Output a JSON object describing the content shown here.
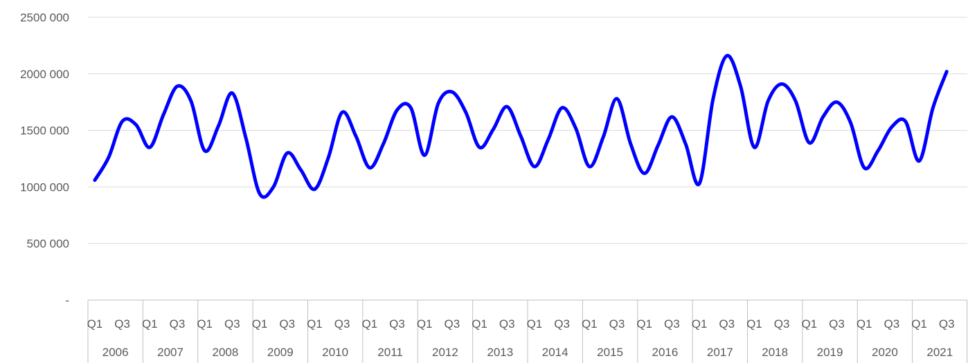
{
  "chart_data": {
    "type": "line",
    "title": "",
    "xlabel": "",
    "ylabel": "",
    "ylim": [
      0,
      2500000
    ],
    "y_ticks": [
      0,
      500000,
      1000000,
      1500000,
      2000000,
      2500000
    ],
    "y_tick_labels": [
      "-",
      "500 000",
      "1000 000",
      "1500 000",
      "2000 000",
      "2500 000"
    ],
    "grid": true,
    "legend": "none",
    "line_color": "#0000ff",
    "quarter_labels": [
      "Q1",
      "Q3"
    ],
    "years": [
      "2006",
      "2007",
      "2008",
      "2009",
      "2010",
      "2011",
      "2012",
      "2013",
      "2014",
      "2015",
      "2016",
      "2017",
      "2018",
      "2019",
      "2020",
      "2021"
    ],
    "x": [
      "2006 Q1",
      "2006 Q2",
      "2006 Q3",
      "2006 Q4",
      "2007 Q1",
      "2007 Q2",
      "2007 Q3",
      "2007 Q4",
      "2008 Q1",
      "2008 Q2",
      "2008 Q3",
      "2008 Q4",
      "2009 Q1",
      "2009 Q2",
      "2009 Q3",
      "2009 Q4",
      "2010 Q1",
      "2010 Q2",
      "2010 Q3",
      "2010 Q4",
      "2011 Q1",
      "2011 Q2",
      "2011 Q3",
      "2011 Q4",
      "2012 Q1",
      "2012 Q2",
      "2012 Q3",
      "2012 Q4",
      "2013 Q1",
      "2013 Q2",
      "2013 Q3",
      "2013 Q4",
      "2014 Q1",
      "2014 Q2",
      "2014 Q3",
      "2014 Q4",
      "2015 Q1",
      "2015 Q2",
      "2015 Q3",
      "2015 Q4",
      "2016 Q1",
      "2016 Q2",
      "2016 Q3",
      "2016 Q4",
      "2017 Q1",
      "2017 Q2",
      "2017 Q3",
      "2017 Q4",
      "2018 Q1",
      "2018 Q2",
      "2018 Q3",
      "2018 Q4",
      "2019 Q1",
      "2019 Q2",
      "2019 Q3",
      "2019 Q4",
      "2020 Q1",
      "2020 Q2",
      "2020 Q3",
      "2020 Q4",
      "2021 Q1",
      "2021 Q2",
      "2021 Q3"
    ],
    "series": [
      {
        "values": [
          1060000,
          1260000,
          1580000,
          1550000,
          1350000,
          1640000,
          1890000,
          1760000,
          1320000,
          1540000,
          1830000,
          1430000,
          940000,
          1000000,
          1300000,
          1150000,
          980000,
          1260000,
          1660000,
          1450000,
          1170000,
          1380000,
          1680000,
          1700000,
          1280000,
          1740000,
          1840000,
          1660000,
          1350000,
          1510000,
          1710000,
          1450000,
          1180000,
          1420000,
          1700000,
          1520000,
          1180000,
          1440000,
          1780000,
          1380000,
          1120000,
          1370000,
          1620000,
          1380000,
          1030000,
          1780000,
          2160000,
          1890000,
          1350000,
          1760000,
          1910000,
          1760000,
          1390000,
          1620000,
          1750000,
          1570000,
          1170000,
          1320000,
          1530000,
          1580000,
          1230000,
          1700000,
          2020000
        ]
      }
    ]
  }
}
